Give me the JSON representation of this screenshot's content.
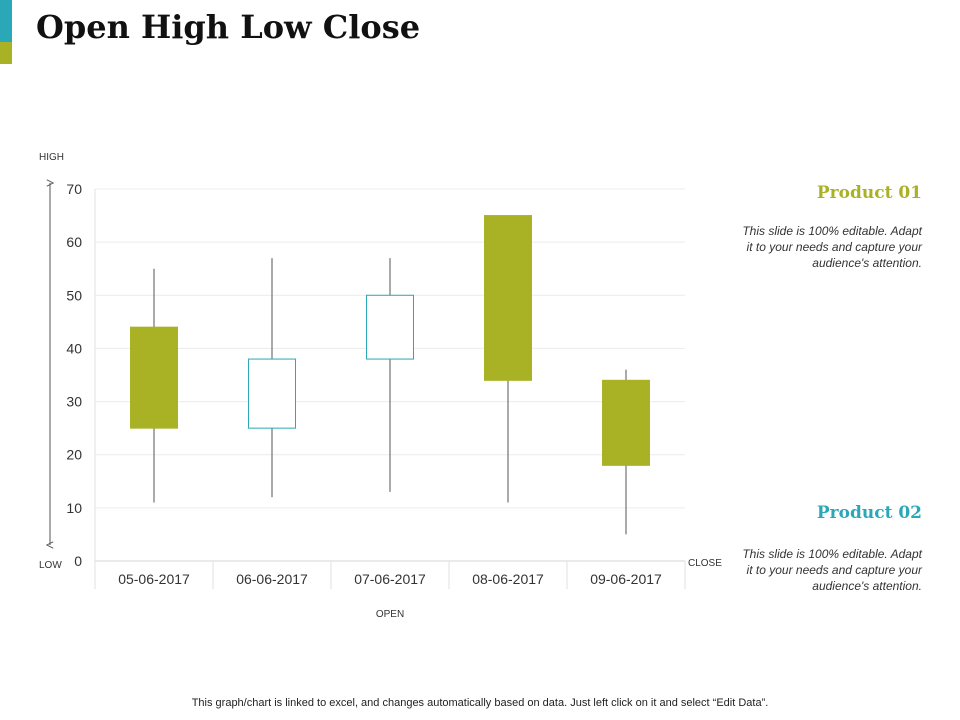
{
  "slide": {
    "title": "Open High Low Close",
    "footer": "This graph/chart is linked to excel, and changes automatically based on data. Just left click on it and select “Edit Data”."
  },
  "colors": {
    "accent_teal": "#2aa8b8",
    "accent_green": "#a8b224",
    "bar_fill": "#a8b224",
    "hollow_stroke": "#2aa8b8",
    "product1_title": "#a8b224",
    "product2_title": "#2aa8b8"
  },
  "products": [
    {
      "title": "Product 01",
      "description": "This slide is 100% editable. Adapt it to your needs and capture your audience's attention."
    },
    {
      "title": "Product 02",
      "description": "This slide is 100% editable. Adapt it to your needs and capture your audience's attention."
    }
  ],
  "chart_data": {
    "type": "candlestick",
    "categories": [
      "05-06-2017",
      "06-06-2017",
      "07-06-2017",
      "08-06-2017",
      "09-06-2017"
    ],
    "series": [
      {
        "open": 44,
        "high": 55,
        "low": 11,
        "close": 25,
        "hollow": false
      },
      {
        "open": 25,
        "high": 57,
        "low": 12,
        "close": 38,
        "hollow": true
      },
      {
        "open": 38,
        "high": 57,
        "low": 13,
        "close": 50,
        "hollow": true
      },
      {
        "open": 65,
        "high": 65,
        "low": 11,
        "close": 34,
        "hollow": false
      },
      {
        "open": 34,
        "high": 36,
        "low": 5,
        "close": 18,
        "hollow": false
      }
    ],
    "ylim": [
      0,
      70
    ],
    "yticks": [
      0,
      10,
      20,
      30,
      40,
      50,
      60,
      70
    ],
    "axis_labels": {
      "high": "HIGH",
      "low": "LOW",
      "open": "OPEN",
      "close": "CLOSE"
    },
    "grid": true
  }
}
